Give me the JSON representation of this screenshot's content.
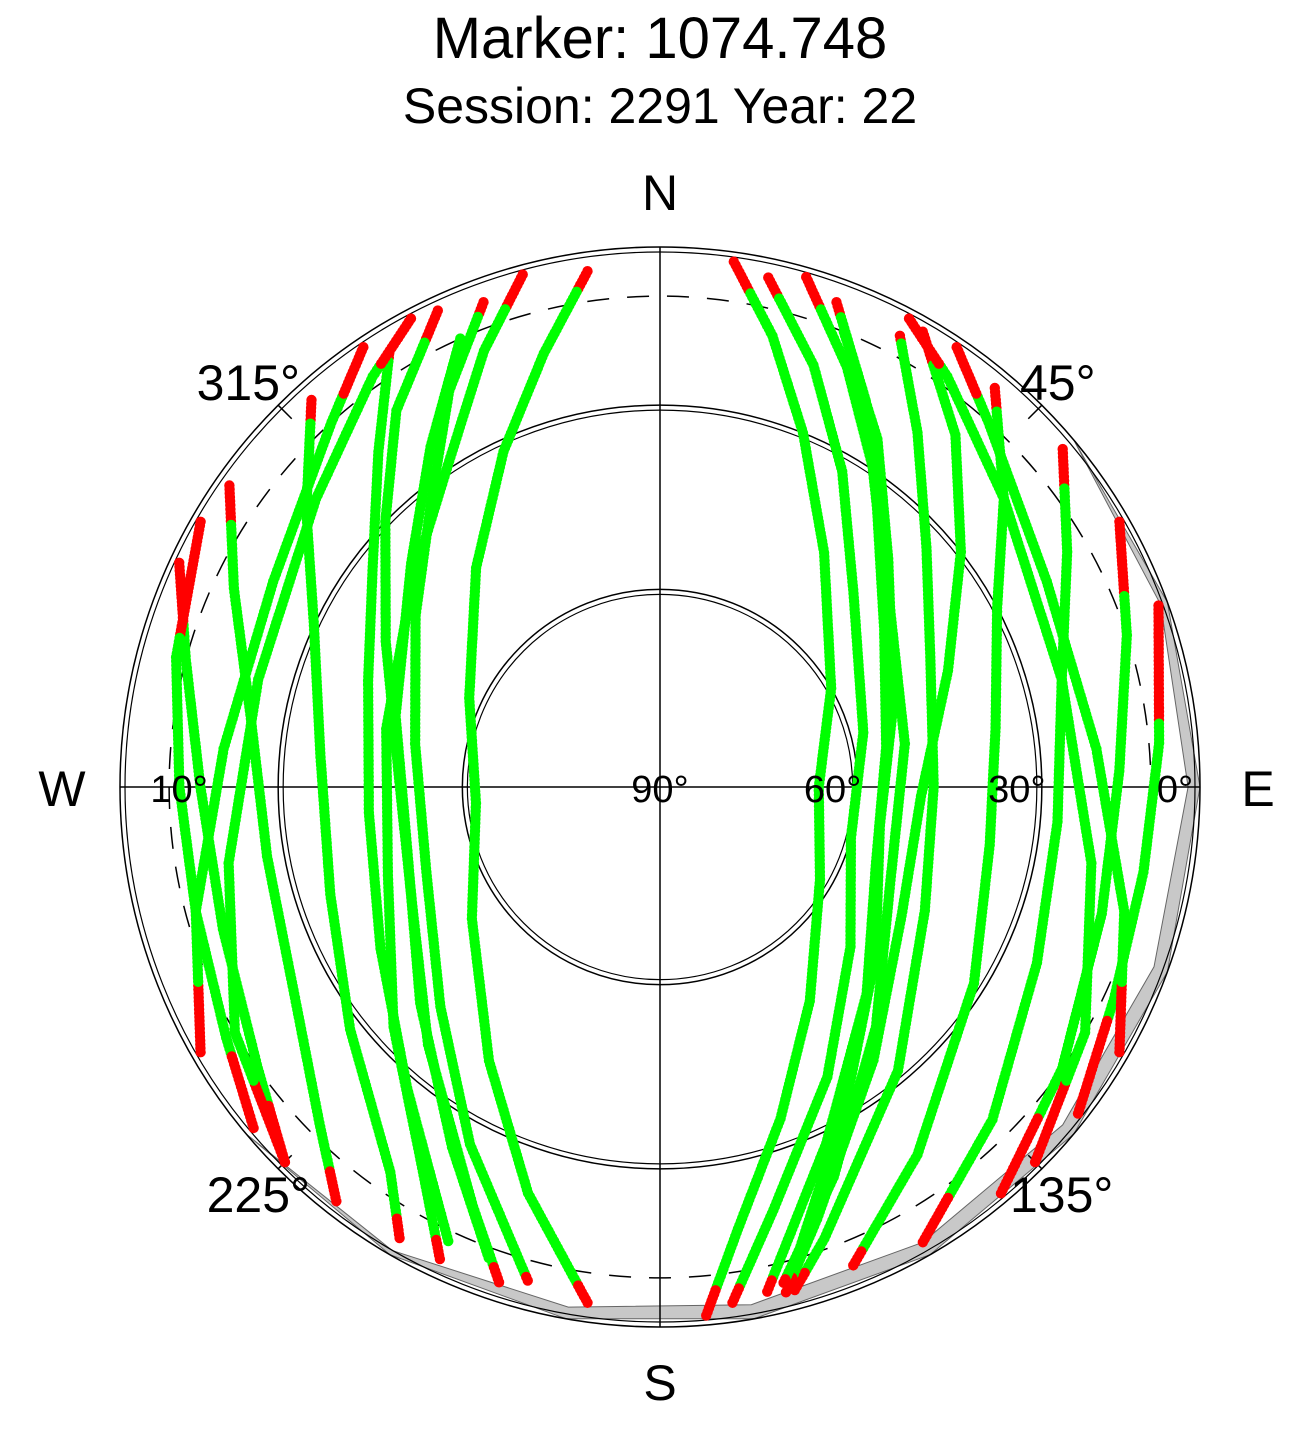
{
  "title": "Marker: 1074.748",
  "subtitle": "Session: 2291 Year: 22",
  "colors": {
    "track": "#00ff00",
    "low_elevation": "#ff0000",
    "mask_fill": "#c8c8c8",
    "grid": "#000000",
    "background": "#ffffff"
  },
  "chart_data": {
    "type": "scatter",
    "projection": "polar-skyplot",
    "directions": {
      "north": "N",
      "south": "S",
      "east": "E",
      "west": "W"
    },
    "azimuth_labels": [
      {
        "az": 45,
        "text": "45°"
      },
      {
        "az": 135,
        "text": "135°"
      },
      {
        "az": 225,
        "text": "225°"
      },
      {
        "az": 315,
        "text": "315°"
      }
    ],
    "elevation_labels": [
      {
        "el": 90,
        "text": "90°"
      },
      {
        "el": 60,
        "text": "60°"
      },
      {
        "el": 30,
        "text": "30°"
      },
      {
        "el": 0,
        "text": "0°"
      },
      {
        "el": 10,
        "text": "10°"
      }
    ],
    "elevation_circles": [
      0,
      30,
      60
    ],
    "cutoff_elevation": 10,
    "radial_scale": "zenithal-equal-area",
    "obstruction_mask": [
      {
        "az": 50,
        "el": 0
      },
      {
        "az": 70,
        "el": 1.5
      },
      {
        "az": 90,
        "el": 2.5
      },
      {
        "az": 110,
        "el": 3
      },
      {
        "az": 130,
        "el": 3
      },
      {
        "az": 150,
        "el": 3
      },
      {
        "az": 170,
        "el": 3
      },
      {
        "az": 190,
        "el": 2.5
      },
      {
        "az": 210,
        "el": 1
      },
      {
        "az": 230,
        "el": 0
      }
    ],
    "series": [
      {
        "tracks": [
          [
            [
              8,
              2
            ],
            [
              14,
              15
            ],
            [
              22,
              30
            ],
            [
              35,
              46
            ],
            [
              60,
              60
            ],
            [
              90,
              66
            ],
            [
              120,
              62
            ],
            [
              145,
              50
            ],
            [
              160,
              35
            ],
            [
              170,
              18
            ],
            [
              175,
              2
            ]
          ],
          [
            [
              12,
              4
            ],
            [
              20,
              18
            ],
            [
              30,
              33
            ],
            [
              45,
              48
            ],
            [
              75,
              58
            ],
            [
              105,
              60
            ],
            [
              130,
              52
            ],
            [
              150,
              38
            ],
            [
              165,
              20
            ],
            [
              172,
              4
            ]
          ],
          [
            [
              20,
              5
            ],
            [
              28,
              20
            ],
            [
              38,
              35
            ],
            [
              55,
              48
            ],
            [
              80,
              55
            ],
            [
              110,
              55
            ],
            [
              135,
              45
            ],
            [
              155,
              28
            ],
            [
              168,
              5
            ]
          ],
          [
            [
              28,
              6
            ],
            [
              36,
              20
            ],
            [
              48,
              34
            ],
            [
              65,
              44
            ],
            [
              90,
              48
            ],
            [
              115,
              45
            ],
            [
              140,
              32
            ],
            [
              160,
              12
            ],
            [
              165,
              4
            ]
          ],
          [
            [
              40,
              4
            ],
            [
              50,
              18
            ],
            [
              62,
              30
            ],
            [
              80,
              37
            ],
            [
              100,
              38
            ],
            [
              122,
              32
            ],
            [
              145,
              18
            ],
            [
              158,
              5
            ]
          ],
          [
            [
              50,
              3
            ],
            [
              60,
              14
            ],
            [
              75,
              24
            ],
            [
              95,
              27
            ],
            [
              115,
              24
            ],
            [
              135,
              14
            ],
            [
              150,
              3
            ]
          ],
          [
            [
              60,
              2
            ],
            [
              72,
              10
            ],
            [
              88,
              16
            ],
            [
              106,
              16
            ],
            [
              125,
              10
            ],
            [
              140,
              2
            ]
          ],
          [
            [
              30,
              3
            ],
            [
              40,
              16
            ],
            [
              52,
              30
            ],
            [
              68,
              42
            ],
            [
              92,
              50
            ],
            [
              118,
              48
            ],
            [
              142,
              36
            ],
            [
              160,
              16
            ],
            [
              166,
              4
            ]
          ],
          [
            [
              352,
              4
            ],
            [
              345,
              18
            ],
            [
              335,
              32
            ],
            [
              320,
              46
            ],
            [
              295,
              58
            ],
            [
              265,
              62
            ],
            [
              235,
              55
            ],
            [
              212,
              40
            ],
            [
              198,
              22
            ],
            [
              188,
              4
            ]
          ],
          [
            [
              340,
              5
            ],
            [
              332,
              18
            ],
            [
              322,
              32
            ],
            [
              305,
              44
            ],
            [
              280,
              52
            ],
            [
              250,
              52
            ],
            [
              225,
              42
            ],
            [
              208,
              26
            ],
            [
              195,
              6
            ]
          ],
          [
            [
              328,
              6
            ],
            [
              320,
              20
            ],
            [
              308,
              33
            ],
            [
              290,
              42
            ],
            [
              265,
              45
            ],
            [
              240,
              40
            ],
            [
              220,
              28
            ],
            [
              205,
              8
            ]
          ],
          [
            [
              318,
              4
            ],
            [
              308,
              18
            ],
            [
              295,
              30
            ],
            [
              275,
              37
            ],
            [
              252,
              36
            ],
            [
              232,
              28
            ],
            [
              215,
              14
            ],
            [
              210,
              4
            ]
          ],
          [
            [
              305,
              3
            ],
            [
              295,
              14
            ],
            [
              280,
              24
            ],
            [
              260,
              27
            ],
            [
              240,
              23
            ],
            [
              225,
              12
            ],
            [
              218,
              3
            ]
          ],
          [
            [
              295,
              2
            ],
            [
              285,
              10
            ],
            [
              270,
              16
            ],
            [
              252,
              16
            ],
            [
              235,
              10
            ],
            [
              225,
              2
            ]
          ],
          [
            [
              335,
              3
            ],
            [
              325,
              16
            ],
            [
              314,
              30
            ],
            [
              298,
              42
            ],
            [
              272,
              50
            ],
            [
              245,
              48
            ],
            [
              222,
              36
            ],
            [
              204,
              16
            ],
            [
              198,
              4
            ]
          ],
          [
            [
              300,
              2
            ],
            [
              285,
              8
            ],
            [
              270,
              12
            ],
            [
              255,
              12
            ],
            [
              240,
              8
            ],
            [
              230,
              2
            ]
          ],
          [
            [
              70,
              2
            ],
            [
              85,
              8
            ],
            [
              100,
              10
            ],
            [
              115,
              8
            ],
            [
              128,
              2
            ]
          ],
          [
            [
              22,
              10
            ],
            [
              32,
              25
            ],
            [
              45,
              40
            ],
            [
              70,
              52
            ],
            [
              100,
              56
            ],
            [
              128,
              48
            ],
            [
              150,
              32
            ],
            [
              163,
              12
            ]
          ],
          [
            [
              336,
              10
            ],
            [
              326,
              25
            ],
            [
              312,
              38
            ],
            [
              285,
              48
            ],
            [
              255,
              50
            ],
            [
              228,
              40
            ],
            [
              210,
              24
            ],
            [
              200,
              8
            ]
          ],
          [
            [
              16,
              2
            ],
            [
              24,
              16
            ],
            [
              34,
              30
            ],
            [
              50,
              44
            ],
            [
              80,
              52
            ],
            [
              112,
              52
            ],
            [
              138,
              40
            ],
            [
              156,
              22
            ],
            [
              166,
              6
            ]
          ],
          [
            [
              345,
              2
            ],
            [
              338,
              14
            ],
            [
              328,
              28
            ],
            [
              310,
              40
            ],
            [
              282,
              47
            ],
            [
              252,
              46
            ],
            [
              228,
              34
            ],
            [
              212,
              18
            ],
            [
              205,
              4
            ]
          ],
          [
            [
              225,
              2
            ],
            [
              240,
              10
            ],
            [
              260,
              20
            ],
            [
              285,
              24
            ],
            [
              310,
              18
            ],
            [
              325,
              8
            ],
            [
              332,
              2
            ]
          ],
          [
            [
              240,
              2
            ],
            [
              255,
              12
            ],
            [
              275,
              20
            ],
            [
              298,
              20
            ],
            [
              318,
              10
            ],
            [
              326,
              2
            ]
          ],
          [
            [
              135,
              2
            ],
            [
              120,
              10
            ],
            [
              100,
              20
            ],
            [
              75,
              24
            ],
            [
              50,
              18
            ],
            [
              35,
              8
            ],
            [
              28,
              2
            ]
          ],
          [
            [
              120,
              2
            ],
            [
              105,
              12
            ],
            [
              85,
              20
            ],
            [
              62,
              20
            ],
            [
              42,
              10
            ],
            [
              34,
              2
            ]
          ]
        ]
      }
    ]
  }
}
